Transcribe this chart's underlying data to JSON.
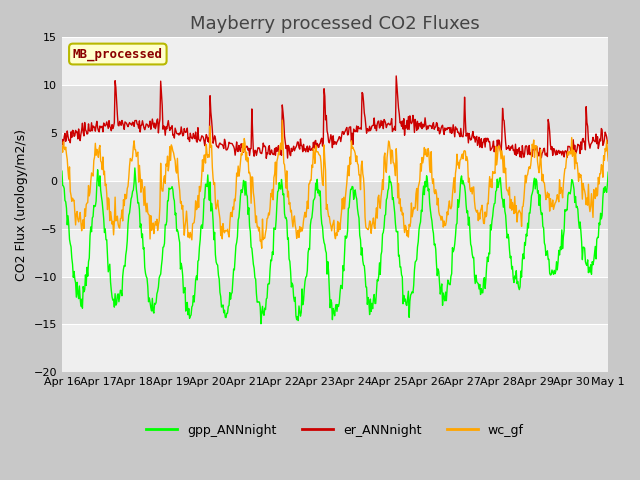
{
  "title": "Mayberry processed CO2 Fluxes",
  "ylabel": "CO2 Flux (urology/m2/s)",
  "ylim": [
    -20,
    15
  ],
  "yticks": [
    -20,
    -15,
    -10,
    -5,
    0,
    5,
    10,
    15
  ],
  "bg_color": "#e0e0e0",
  "legend_label": "MB_processed",
  "legend_text_color": "#8b0000",
  "legend_box_color": "#ffffcc",
  "legend_box_edge": "#b8b800",
  "gpp_color": "#00ff00",
  "er_color": "#cc0000",
  "wc_color": "#ffa500",
  "linewidth": 1.0,
  "xticklabels": [
    "Apr 16",
    "Apr 17",
    "Apr 18",
    "Apr 19",
    "Apr 20",
    "Apr 21",
    "Apr 22",
    "Apr 23",
    "Apr 24",
    "Apr 25",
    "Apr 26",
    "Apr 27",
    "Apr 28",
    "Apr 29",
    "Apr 30",
    "May 1"
  ],
  "title_fontsize": 13,
  "label_fontsize": 9,
  "tick_fontsize": 8,
  "grid_color": "#ffffff",
  "fig_bg": "#c8c8c8"
}
